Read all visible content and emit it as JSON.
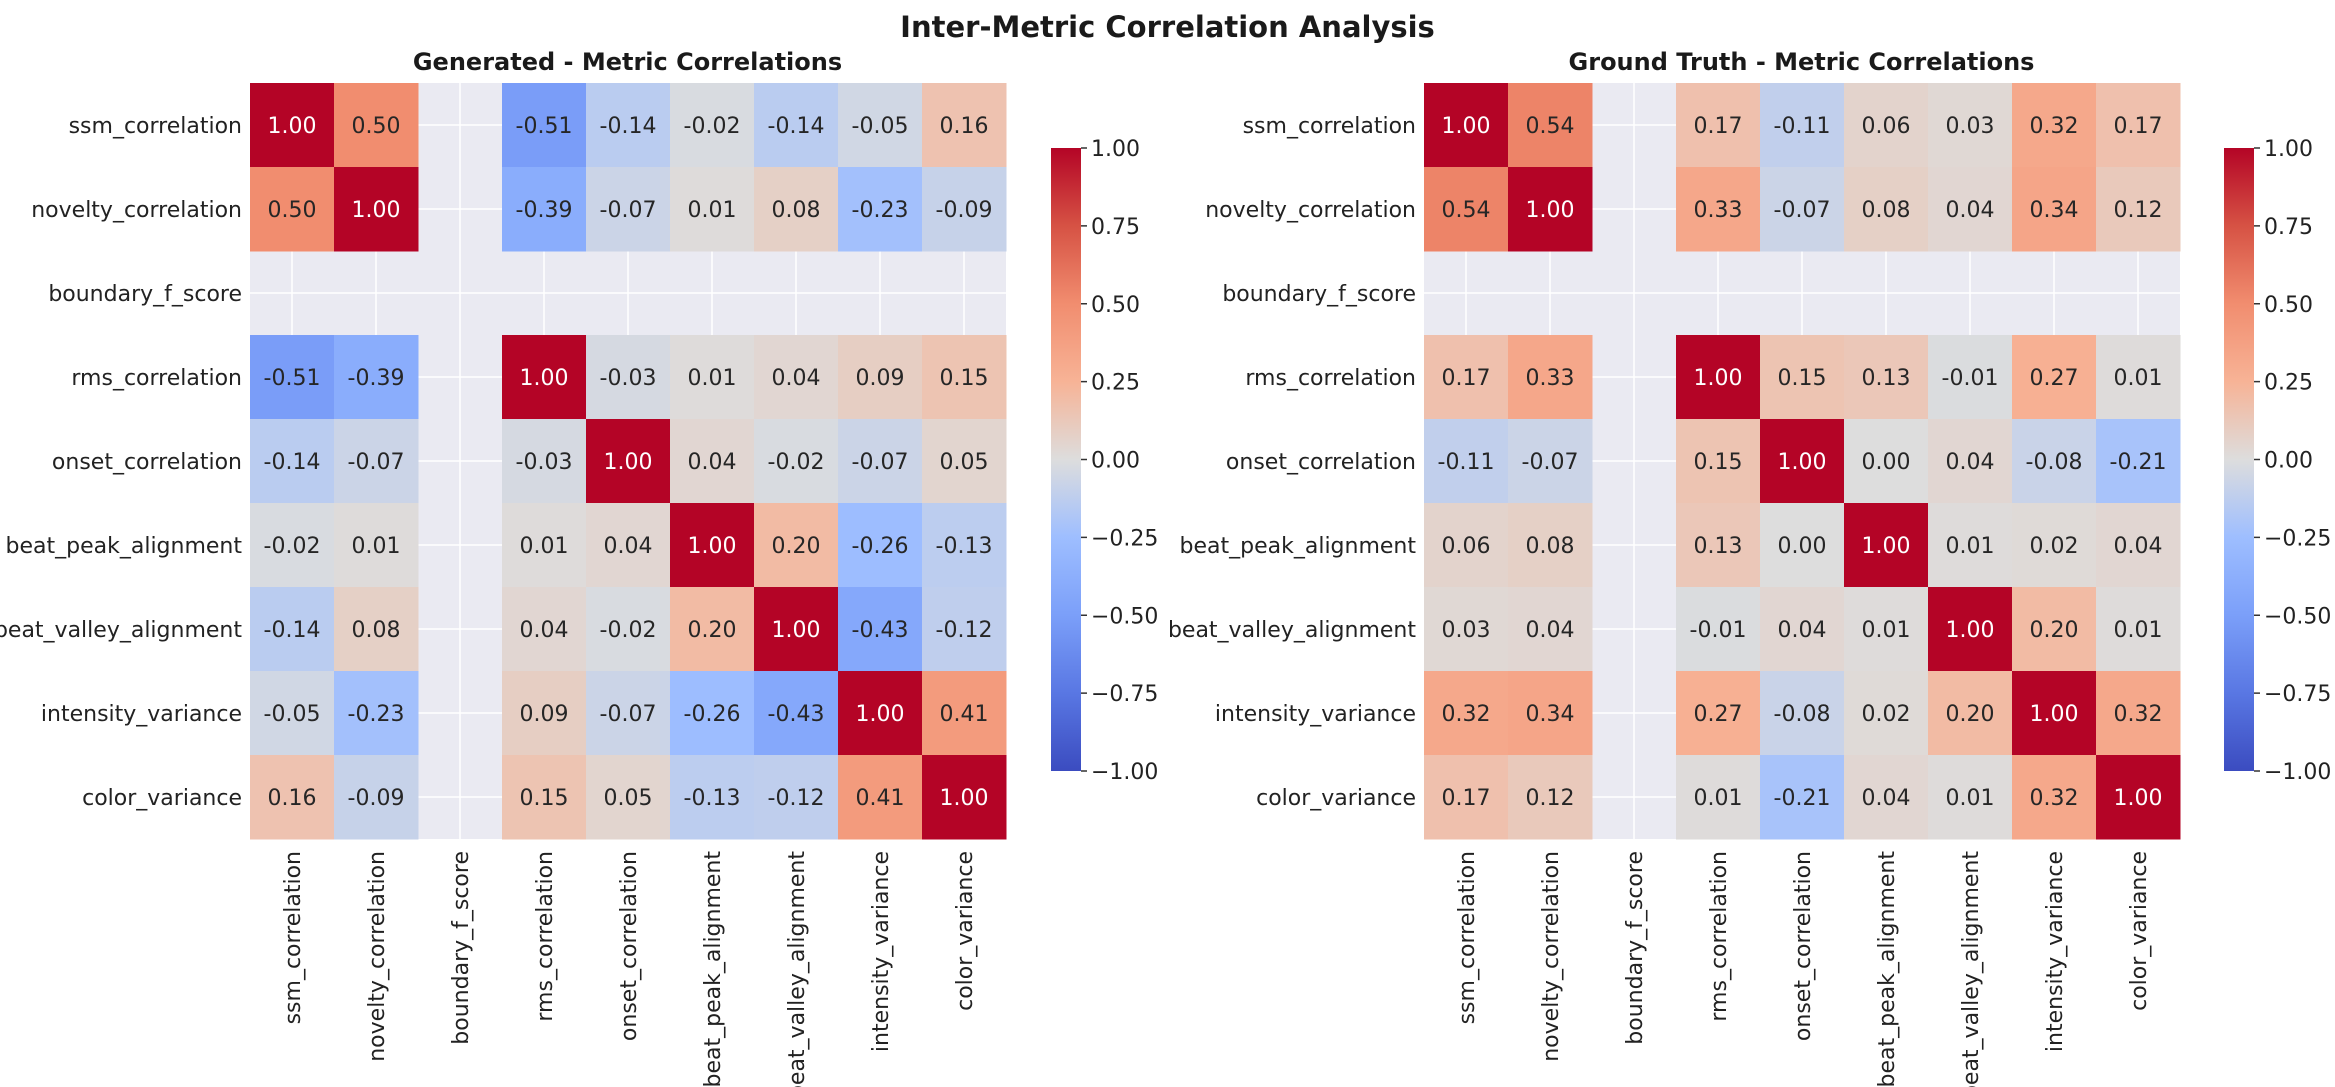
{
  "figure_title": "Inter-Metric Correlation Analysis",
  "colors": {
    "cool": "#3b4cc0",
    "neutral": "#dddddd",
    "warm": "#b40426",
    "nan_background": "#eaeaf2"
  },
  "chart_data": [
    {
      "type": "heatmap",
      "title": "Generated - Metric Correlations",
      "labels": [
        "ssm_correlation",
        "novelty_correlation",
        "boundary_f_score",
        "rms_correlation",
        "onset_correlation",
        "beat_peak_alignment",
        "beat_valley_alignment",
        "intensity_variance",
        "color_variance"
      ],
      "values": [
        [
          1.0,
          0.5,
          null,
          -0.51,
          -0.14,
          -0.02,
          -0.14,
          -0.05,
          0.16
        ],
        [
          0.5,
          1.0,
          null,
          -0.39,
          -0.07,
          0.01,
          0.08,
          -0.23,
          -0.09
        ],
        [
          null,
          null,
          null,
          null,
          null,
          null,
          null,
          null,
          null
        ],
        [
          -0.51,
          -0.39,
          null,
          1.0,
          -0.03,
          0.01,
          0.04,
          0.09,
          0.15
        ],
        [
          -0.14,
          -0.07,
          null,
          -0.03,
          1.0,
          0.04,
          -0.02,
          -0.07,
          0.05
        ],
        [
          -0.02,
          0.01,
          null,
          0.01,
          0.04,
          1.0,
          0.2,
          -0.26,
          -0.13
        ],
        [
          -0.14,
          0.08,
          null,
          0.04,
          -0.02,
          0.2,
          1.0,
          -0.43,
          -0.12
        ],
        [
          -0.05,
          -0.23,
          null,
          0.09,
          -0.07,
          -0.26,
          -0.43,
          1.0,
          0.41
        ],
        [
          0.16,
          -0.09,
          null,
          0.15,
          0.05,
          -0.13,
          -0.12,
          0.41,
          1.0
        ]
      ],
      "vmin": -1.0,
      "vmax": 1.0,
      "colorbar_ticks": [
        "1.00",
        "0.75",
        "0.50",
        "0.25",
        "0.00",
        "−0.25",
        "−0.50",
        "−0.75",
        "−1.00"
      ],
      "colormap": "coolwarm"
    },
    {
      "type": "heatmap",
      "title": "Ground Truth - Metric Correlations",
      "labels": [
        "ssm_correlation",
        "novelty_correlation",
        "boundary_f_score",
        "rms_correlation",
        "onset_correlation",
        "beat_peak_alignment",
        "beat_valley_alignment",
        "intensity_variance",
        "color_variance"
      ],
      "values": [
        [
          1.0,
          0.54,
          null,
          0.17,
          -0.11,
          0.06,
          0.03,
          0.32,
          0.17
        ],
        [
          0.54,
          1.0,
          null,
          0.33,
          -0.07,
          0.08,
          0.04,
          0.34,
          0.12
        ],
        [
          null,
          null,
          null,
          null,
          null,
          null,
          null,
          null,
          null
        ],
        [
          0.17,
          0.33,
          null,
          1.0,
          0.15,
          0.13,
          -0.01,
          0.27,
          0.01
        ],
        [
          -0.11,
          -0.07,
          null,
          0.15,
          1.0,
          0.0,
          0.04,
          -0.08,
          -0.21
        ],
        [
          0.06,
          0.08,
          null,
          0.13,
          0.0,
          1.0,
          0.01,
          0.02,
          0.04
        ],
        [
          0.03,
          0.04,
          null,
          -0.01,
          0.04,
          0.01,
          1.0,
          0.2,
          0.01
        ],
        [
          0.32,
          0.34,
          null,
          0.27,
          -0.08,
          0.02,
          0.2,
          1.0,
          0.32
        ],
        [
          0.17,
          0.12,
          null,
          0.01,
          -0.21,
          0.04,
          0.01,
          0.32,
          1.0
        ]
      ],
      "vmin": -1.0,
      "vmax": 1.0,
      "colorbar_ticks": [
        "1.00",
        "0.75",
        "0.50",
        "0.25",
        "0.00",
        "−0.25",
        "−0.50",
        "−0.75",
        "−1.00"
      ],
      "colormap": "coolwarm"
    }
  ]
}
